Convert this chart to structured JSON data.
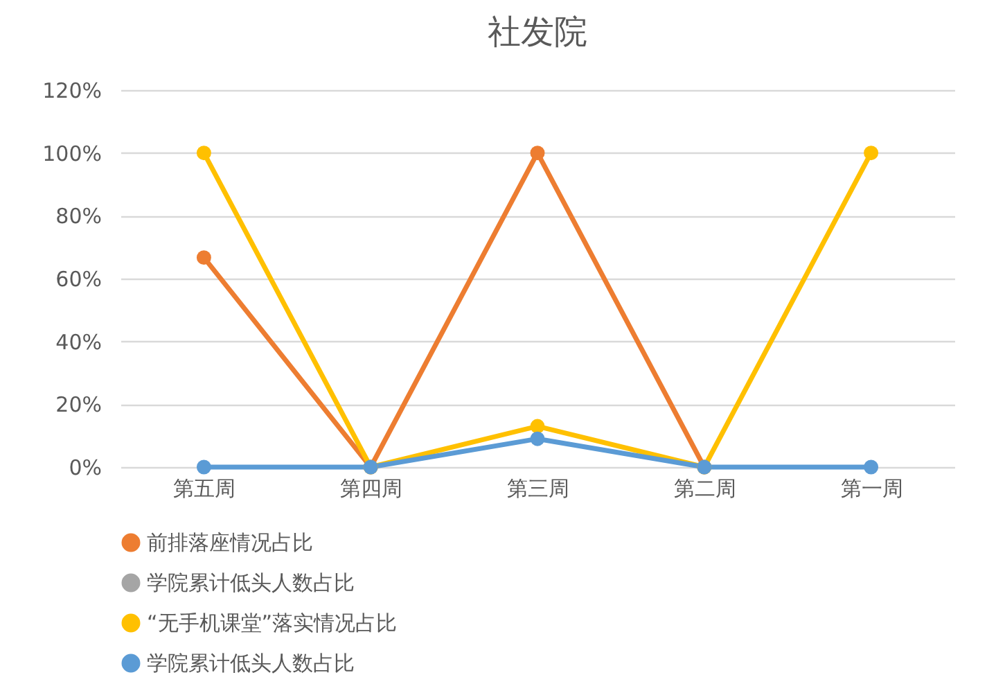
{
  "chart_data": {
    "type": "line",
    "title": "社发院",
    "categories": [
      "第五周",
      "第四周",
      "第三周",
      "第二周",
      "第一周"
    ],
    "series": [
      {
        "name": "前排落座情况占比",
        "color": "#ed7d31",
        "values": [
          66.7,
          0,
          100,
          0,
          null
        ]
      },
      {
        "name": "学院累计低头人数占比",
        "color": "#a5a5a5",
        "values": [
          null,
          null,
          null,
          null,
          null
        ]
      },
      {
        "name": "“无手机课堂”落实情况占比",
        "color": "#ffc000",
        "values": [
          100,
          0,
          13,
          0,
          100
        ]
      },
      {
        "name": "学院累计低头人数占比",
        "color": "#5b9bd5",
        "values": [
          0,
          0,
          9,
          0,
          0
        ]
      }
    ],
    "ylim": [
      0,
      120
    ],
    "yticks": [
      {
        "value": 0,
        "label": "0%"
      },
      {
        "value": 20,
        "label": "20%"
      },
      {
        "value": 40,
        "label": "40%"
      },
      {
        "value": 60,
        "label": "60%"
      },
      {
        "value": 80,
        "label": "80%"
      },
      {
        "value": 100,
        "label": "100%"
      },
      {
        "value": 120,
        "label": "120%"
      }
    ],
    "grid": "y",
    "legend": "bottom",
    "marker": "circle",
    "line_style": "solid"
  }
}
